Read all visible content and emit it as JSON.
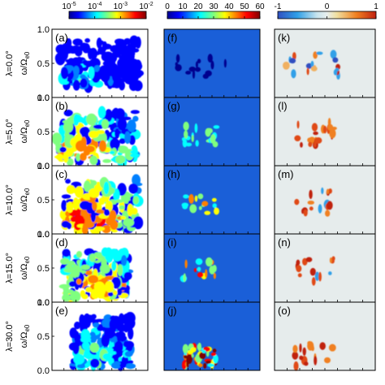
{
  "figure": {
    "row_labels": [
      "λ=0.0°",
      "λ=5.0°",
      "λ=10.0°",
      "λ=15.0°",
      "λ=30.0°"
    ],
    "ylabel": "ω/Ω",
    "ylabel_sub": "e0",
    "columns": [
      {
        "colorbar": {
          "type": "log",
          "ticks": [
            "10",
            "10",
            "10",
            "10"
          ],
          "exponents": [
            "-5",
            "-4",
            "-3",
            "-2"
          ],
          "cmap": "jet"
        },
        "panels": [
          "(a)",
          "(b)",
          "(c)",
          "(d)",
          "(e)"
        ]
      },
      {
        "colorbar": {
          "type": "linear",
          "ticks": [
            "0",
            "10",
            "20",
            "30",
            "40",
            "50",
            "60"
          ],
          "cmap": "jet"
        },
        "panels": [
          "(f)",
          "(g)",
          "(h)",
          "(i)",
          "(j)"
        ]
      },
      {
        "colorbar": {
          "type": "linear",
          "ticks": [
            "-1",
            "0",
            "1"
          ],
          "cmap": "diverging"
        },
        "panels": [
          "(k)",
          "(l)",
          "(m)",
          "(n)",
          "(o)"
        ]
      }
    ]
  },
  "chart_data": [
    {
      "type": "heatmap",
      "title": "",
      "color_scale": "log",
      "clim": [
        1e-05,
        0.01
      ],
      "ylim": [
        0,
        1.0
      ],
      "yticks": [
        "0.0",
        "0.5",
        "1.0"
      ],
      "panels": [
        {
          "label": "(a)",
          "row": "λ=0.0°",
          "peak": 0.0003,
          "band_omega": [
            0.1,
            0.9
          ]
        },
        {
          "label": "(b)",
          "row": "λ=5.0°",
          "peak": 0.003,
          "band_omega": [
            0.05,
            0.85
          ]
        },
        {
          "label": "(c)",
          "row": "λ=10.0°",
          "peak": 0.005,
          "band_omega": [
            0.05,
            0.8
          ]
        },
        {
          "label": "(d)",
          "row": "λ=15.0°",
          "peak": 0.003,
          "band_omega": [
            0.1,
            0.75
          ]
        },
        {
          "label": "(e)",
          "row": "λ=30.0°",
          "peak": 0.001,
          "band_omega": [
            0.1,
            0.75
          ]
        }
      ]
    },
    {
      "type": "heatmap",
      "color_scale": "linear",
      "clim": [
        0,
        60
      ],
      "panels": [
        {
          "label": "(f)",
          "peak": 0
        },
        {
          "label": "(g)",
          "peak": 20
        },
        {
          "label": "(h)",
          "peak": 35
        },
        {
          "label": "(i)",
          "peak": 45
        },
        {
          "label": "(j)",
          "peak": 60
        }
      ]
    },
    {
      "type": "heatmap",
      "color_scale": "linear",
      "clim": [
        -1,
        1
      ],
      "panels": [
        {
          "label": "(k)",
          "dominant": "mixed"
        },
        {
          "label": "(l)",
          "dominant": 1
        },
        {
          "label": "(m)",
          "dominant": 1
        },
        {
          "label": "(n)",
          "dominant": 1
        },
        {
          "label": "(o)",
          "dominant": 1
        }
      ]
    }
  ]
}
